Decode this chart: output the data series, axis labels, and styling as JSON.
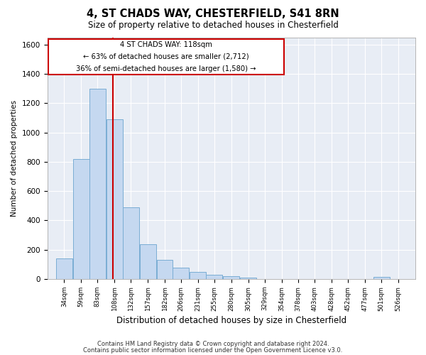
{
  "title1": "4, ST CHADS WAY, CHESTERFIELD, S41 8RN",
  "title2": "Size of property relative to detached houses in Chesterfield",
  "xlabel": "Distribution of detached houses by size in Chesterfield",
  "ylabel": "Number of detached properties",
  "footer1": "Contains HM Land Registry data © Crown copyright and database right 2024.",
  "footer2": "Contains public sector information licensed under the Open Government Licence v3.0.",
  "annotation_line1": "4 ST CHADS WAY: 118sqm",
  "annotation_line2": "← 63% of detached houses are smaller (2,712)",
  "annotation_line3": "36% of semi-detached houses are larger (1,580) →",
  "property_size_sqm": 118,
  "bins": [
    34,
    59,
    83,
    108,
    132,
    157,
    182,
    206,
    231,
    255,
    280,
    305,
    329,
    354,
    378,
    403,
    428,
    452,
    477,
    501,
    526
  ],
  "counts": [
    140,
    820,
    1300,
    1090,
    490,
    235,
    130,
    75,
    50,
    30,
    20,
    10,
    0,
    0,
    0,
    0,
    0,
    0,
    0,
    15,
    0
  ],
  "bar_color": "#c5d8f0",
  "bar_edge_color": "#7aadd4",
  "bg_color": "#e8edf5",
  "grid_color": "#ffffff",
  "annotation_box_color": "#ffffff",
  "annotation_box_edge": "#cc0000",
  "vline_color": "#cc0000",
  "ylim": [
    0,
    1650
  ],
  "yticks": [
    0,
    200,
    400,
    600,
    800,
    1000,
    1200,
    1400,
    1600
  ]
}
